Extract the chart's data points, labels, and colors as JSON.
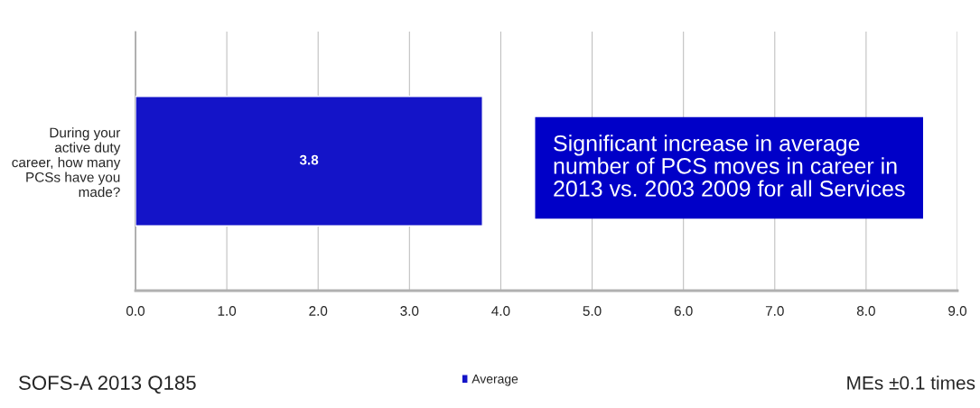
{
  "chart_data": {
    "type": "bar",
    "orientation": "horizontal",
    "categories": [
      "During your\nactive duty\ncareer, how many\nPCSs have you\nmade?"
    ],
    "series": [
      {
        "name": "Average",
        "color": "#1414c8",
        "values": [
          3.8
        ]
      }
    ],
    "data_labels": true,
    "xlim": [
      0,
      9
    ],
    "xticks": [
      {
        "value": 0,
        "label": "0.0"
      },
      {
        "value": 1,
        "label": "1.0"
      },
      {
        "value": 2,
        "label": "2.0"
      },
      {
        "value": 3,
        "label": "3.0"
      },
      {
        "value": 4,
        "label": "4.0"
      },
      {
        "value": 5,
        "label": "5.0"
      },
      {
        "value": 6,
        "label": "6.0"
      },
      {
        "value": 7,
        "label": "7.0"
      },
      {
        "value": 8,
        "label": "8.0"
      },
      {
        "value": 9,
        "label": "9.0"
      }
    ],
    "grid": "x",
    "legend": "bottom",
    "annotations": [
      "Significant increase in average number of PCS moves in career in 2013 vs. 2003 2009 for all Services",
      "SOFS-A 2013 Q185",
      "MEs ±0.1 times"
    ]
  }
}
